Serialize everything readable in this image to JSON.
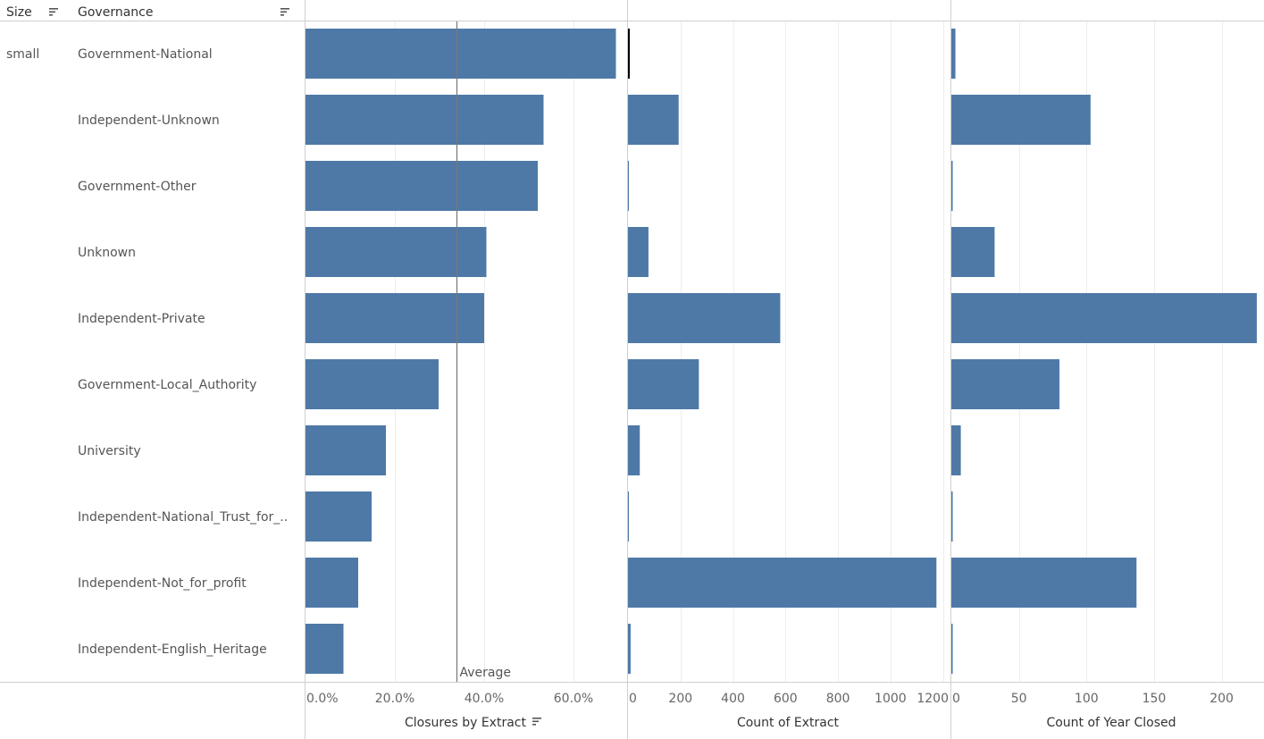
{
  "header": {
    "size_label": "Size",
    "governance_label": "Governance",
    "size_value": "small"
  },
  "chart_data": [
    {
      "type": "bar",
      "orientation": "horizontal",
      "categories": [
        "Government-National",
        "Independent-Unknown",
        "Government-Other",
        "Unknown",
        "Independent-Private",
        "Government-Local_Authority",
        "University",
        "Independent-National_Trust_for_..",
        "Independent-Not_for_profit",
        "Independent-English_Heritage"
      ],
      "values": [
        69.5,
        53.3,
        52.0,
        40.5,
        40.0,
        29.8,
        18.0,
        14.8,
        11.8,
        8.5
      ],
      "xlabel": "Closures by Extract",
      "xlim": [
        0,
        72
      ],
      "ticks": [
        0,
        20,
        40,
        60
      ],
      "tick_labels": [
        "0.0%",
        "20.0%",
        "40.0%",
        "60.0%"
      ],
      "reference_line": {
        "label": "Average",
        "value": 33.8
      },
      "color": "#4e79a7",
      "grid": true
    },
    {
      "type": "bar",
      "orientation": "horizontal",
      "categories": [
        "Government-National",
        "Independent-Unknown",
        "Government-Other",
        "Unknown",
        "Independent-Private",
        "Government-Local_Authority",
        "University",
        "Independent-National_Trust_for_..",
        "Independent-Not_for_profit",
        "Independent-English_Heritage"
      ],
      "values": [
        4,
        193,
        1,
        78,
        580,
        270,
        45,
        3,
        1175,
        10
      ],
      "xlabel": "Count of Extract",
      "xlim": [
        0,
        1225
      ],
      "ticks": [
        0,
        200,
        400,
        600,
        800,
        1000,
        1200
      ],
      "tick_labels": [
        "0",
        "200",
        "400",
        "600",
        "800",
        "1000",
        "1200"
      ],
      "color": "#4e79a7",
      "grid": true
    },
    {
      "type": "bar",
      "orientation": "horizontal",
      "categories": [
        "Government-National",
        "Independent-Unknown",
        "Government-Other",
        "Unknown",
        "Independent-Private",
        "Government-Local_Authority",
        "University",
        "Independent-National_Trust_for_..",
        "Independent-Not_for_profit",
        "Independent-English_Heritage"
      ],
      "values": [
        3,
        103,
        1,
        32,
        226,
        80,
        7,
        1,
        137,
        1
      ],
      "xlabel": "Count of Year Closed",
      "xlim": [
        0,
        230
      ],
      "ticks": [
        0,
        50,
        100,
        150,
        200
      ],
      "tick_labels": [
        "0",
        "50",
        "100",
        "150",
        "200"
      ],
      "color": "#4e79a7",
      "grid": true
    }
  ]
}
